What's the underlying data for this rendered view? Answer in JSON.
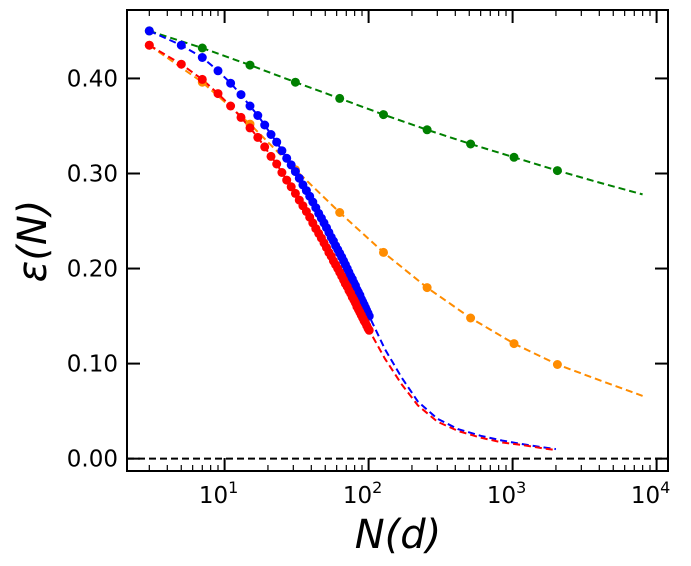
{
  "chart_data": {
    "type": "scatter",
    "title": "",
    "xlabel": "N(d)",
    "ylabel": "ε(N)",
    "xscale": "log",
    "xlim": [
      2.1,
      12000
    ],
    "ylim": [
      -0.013,
      0.472
    ],
    "x_ticks": [
      {
        "value": 10,
        "base": "10",
        "exp": "1"
      },
      {
        "value": 100,
        "base": "10",
        "exp": "2"
      },
      {
        "value": 1000,
        "base": "10",
        "exp": "3"
      },
      {
        "value": 10000,
        "base": "10",
        "exp": "4"
      }
    ],
    "y_ticks": [
      {
        "value": 0.0,
        "label": "0.00"
      },
      {
        "value": 0.1,
        "label": "0.10"
      },
      {
        "value": 0.2,
        "label": "0.20"
      },
      {
        "value": 0.3,
        "label": "0.30"
      },
      {
        "value": 0.4,
        "label": "0.40"
      }
    ],
    "reference_line": {
      "y": 0.0,
      "style": "dashed",
      "color": "#000000"
    },
    "series": [
      {
        "name": "green",
        "color": "#008000",
        "points": [
          [
            3,
            0.45
          ],
          [
            7,
            0.432
          ],
          [
            15,
            0.414
          ],
          [
            31,
            0.396
          ],
          [
            63,
            0.379
          ],
          [
            127,
            0.362
          ],
          [
            255,
            0.346
          ],
          [
            511,
            0.331
          ],
          [
            1023,
            0.317
          ],
          [
            2047,
            0.303
          ]
        ],
        "fit": [
          [
            3,
            0.45
          ],
          [
            7,
            0.432
          ],
          [
            15,
            0.414
          ],
          [
            31,
            0.396
          ],
          [
            63,
            0.379
          ],
          [
            127,
            0.362
          ],
          [
            255,
            0.346
          ],
          [
            511,
            0.331
          ],
          [
            1023,
            0.317
          ],
          [
            2047,
            0.303
          ],
          [
            4095,
            0.29
          ],
          [
            8000,
            0.278
          ]
        ]
      },
      {
        "name": "orange",
        "color": "#ff8c00",
        "points": [
          [
            3,
            0.435
          ],
          [
            7,
            0.396
          ],
          [
            15,
            0.352
          ],
          [
            31,
            0.304
          ],
          [
            63,
            0.259
          ],
          [
            127,
            0.217
          ],
          [
            255,
            0.18
          ],
          [
            511,
            0.148
          ],
          [
            1023,
            0.121
          ],
          [
            2047,
            0.099
          ]
        ],
        "fit": [
          [
            3,
            0.435
          ],
          [
            7,
            0.396
          ],
          [
            15,
            0.352
          ],
          [
            31,
            0.304
          ],
          [
            63,
            0.259
          ],
          [
            127,
            0.217
          ],
          [
            255,
            0.18
          ],
          [
            511,
            0.148
          ],
          [
            1023,
            0.121
          ],
          [
            2047,
            0.099
          ],
          [
            4095,
            0.082
          ],
          [
            8000,
            0.066
          ]
        ]
      },
      {
        "name": "blue",
        "color": "#0000ff",
        "points": [
          [
            3,
            0.45
          ],
          [
            5,
            0.435
          ],
          [
            7,
            0.422
          ],
          [
            9,
            0.408
          ],
          [
            11,
            0.395
          ],
          [
            13,
            0.383
          ],
          [
            15,
            0.371
          ],
          [
            17,
            0.361
          ],
          [
            19,
            0.351
          ],
          [
            21,
            0.341
          ],
          [
            23,
            0.333
          ],
          [
            25,
            0.324
          ],
          [
            27,
            0.316
          ],
          [
            29,
            0.309
          ],
          [
            31,
            0.302
          ],
          [
            33,
            0.295
          ],
          [
            35,
            0.288
          ],
          [
            37,
            0.282
          ],
          [
            39,
            0.276
          ],
          [
            41,
            0.27
          ],
          [
            43,
            0.264
          ],
          [
            45,
            0.258
          ],
          [
            47,
            0.253
          ],
          [
            49,
            0.248
          ],
          [
            51,
            0.243
          ],
          [
            53,
            0.238
          ],
          [
            55,
            0.233
          ],
          [
            57,
            0.229
          ],
          [
            59,
            0.224
          ],
          [
            61,
            0.22
          ],
          [
            63,
            0.216
          ],
          [
            65,
            0.212
          ],
          [
            67,
            0.208
          ],
          [
            69,
            0.204
          ],
          [
            71,
            0.2
          ],
          [
            73,
            0.196
          ],
          [
            75,
            0.192
          ],
          [
            77,
            0.189
          ],
          [
            79,
            0.185
          ],
          [
            81,
            0.182
          ],
          [
            83,
            0.178
          ],
          [
            85,
            0.175
          ],
          [
            87,
            0.172
          ],
          [
            89,
            0.168
          ],
          [
            91,
            0.165
          ],
          [
            93,
            0.162
          ],
          [
            95,
            0.159
          ],
          [
            97,
            0.156
          ],
          [
            99,
            0.153
          ],
          [
            101,
            0.15
          ]
        ],
        "fit": [
          [
            3,
            0.45
          ],
          [
            5,
            0.435
          ],
          [
            7,
            0.422
          ],
          [
            9,
            0.408
          ],
          [
            11,
            0.395
          ],
          [
            13,
            0.383
          ],
          [
            15,
            0.371
          ],
          [
            17,
            0.361
          ],
          [
            19,
            0.351
          ],
          [
            21,
            0.341
          ],
          [
            23,
            0.333
          ],
          [
            25,
            0.324
          ],
          [
            27,
            0.316
          ],
          [
            29,
            0.309
          ],
          [
            31,
            0.302
          ],
          [
            35,
            0.288
          ],
          [
            41,
            0.27
          ],
          [
            47,
            0.253
          ],
          [
            55,
            0.233
          ],
          [
            63,
            0.216
          ],
          [
            71,
            0.2
          ],
          [
            81,
            0.182
          ],
          [
            91,
            0.165
          ],
          [
            101,
            0.15
          ],
          [
            130,
            0.115
          ],
          [
            170,
            0.085
          ],
          [
            220,
            0.06
          ],
          [
            300,
            0.042
          ],
          [
            420,
            0.031
          ],
          [
            600,
            0.024
          ],
          [
            850,
            0.019
          ],
          [
            1200,
            0.015
          ],
          [
            1600,
            0.012
          ],
          [
            2000,
            0.01
          ]
        ]
      },
      {
        "name": "red",
        "color": "#ff0000",
        "points": [
          [
            3,
            0.435
          ],
          [
            5,
            0.415
          ],
          [
            7,
            0.399
          ],
          [
            9,
            0.384
          ],
          [
            11,
            0.371
          ],
          [
            13,
            0.359
          ],
          [
            15,
            0.348
          ],
          [
            17,
            0.338
          ],
          [
            19,
            0.328
          ],
          [
            21,
            0.318
          ],
          [
            23,
            0.31
          ],
          [
            25,
            0.301
          ],
          [
            27,
            0.293
          ],
          [
            29,
            0.286
          ],
          [
            31,
            0.279
          ],
          [
            33,
            0.272
          ],
          [
            35,
            0.266
          ],
          [
            37,
            0.26
          ],
          [
            39,
            0.254
          ],
          [
            41,
            0.248
          ],
          [
            43,
            0.242
          ],
          [
            45,
            0.237
          ],
          [
            47,
            0.232
          ],
          [
            49,
            0.227
          ],
          [
            51,
            0.222
          ],
          [
            53,
            0.217
          ],
          [
            55,
            0.213
          ],
          [
            57,
            0.208
          ],
          [
            59,
            0.204
          ],
          [
            61,
            0.2
          ],
          [
            63,
            0.196
          ],
          [
            65,
            0.192
          ],
          [
            67,
            0.188
          ],
          [
            69,
            0.184
          ],
          [
            71,
            0.181
          ],
          [
            73,
            0.177
          ],
          [
            75,
            0.174
          ],
          [
            77,
            0.17
          ],
          [
            79,
            0.167
          ],
          [
            81,
            0.164
          ],
          [
            83,
            0.16
          ],
          [
            85,
            0.157
          ],
          [
            87,
            0.154
          ],
          [
            89,
            0.151
          ],
          [
            91,
            0.148
          ],
          [
            93,
            0.145
          ],
          [
            95,
            0.143
          ],
          [
            97,
            0.14
          ],
          [
            99,
            0.137
          ],
          [
            101,
            0.135
          ]
        ],
        "fit": [
          [
            3,
            0.435
          ],
          [
            5,
            0.415
          ],
          [
            7,
            0.399
          ],
          [
            9,
            0.384
          ],
          [
            11,
            0.371
          ],
          [
            13,
            0.359
          ],
          [
            15,
            0.348
          ],
          [
            17,
            0.338
          ],
          [
            19,
            0.328
          ],
          [
            21,
            0.318
          ],
          [
            23,
            0.31
          ],
          [
            25,
            0.301
          ],
          [
            27,
            0.293
          ],
          [
            29,
            0.286
          ],
          [
            31,
            0.279
          ],
          [
            35,
            0.266
          ],
          [
            41,
            0.248
          ],
          [
            47,
            0.232
          ],
          [
            55,
            0.213
          ],
          [
            63,
            0.196
          ],
          [
            71,
            0.181
          ],
          [
            81,
            0.164
          ],
          [
            91,
            0.148
          ],
          [
            101,
            0.135
          ],
          [
            130,
            0.105
          ],
          [
            170,
            0.078
          ],
          [
            220,
            0.056
          ],
          [
            300,
            0.039
          ],
          [
            420,
            0.029
          ],
          [
            600,
            0.022
          ],
          [
            850,
            0.017
          ],
          [
            1200,
            0.014
          ],
          [
            1600,
            0.011
          ],
          [
            2000,
            0.009
          ]
        ]
      }
    ]
  }
}
